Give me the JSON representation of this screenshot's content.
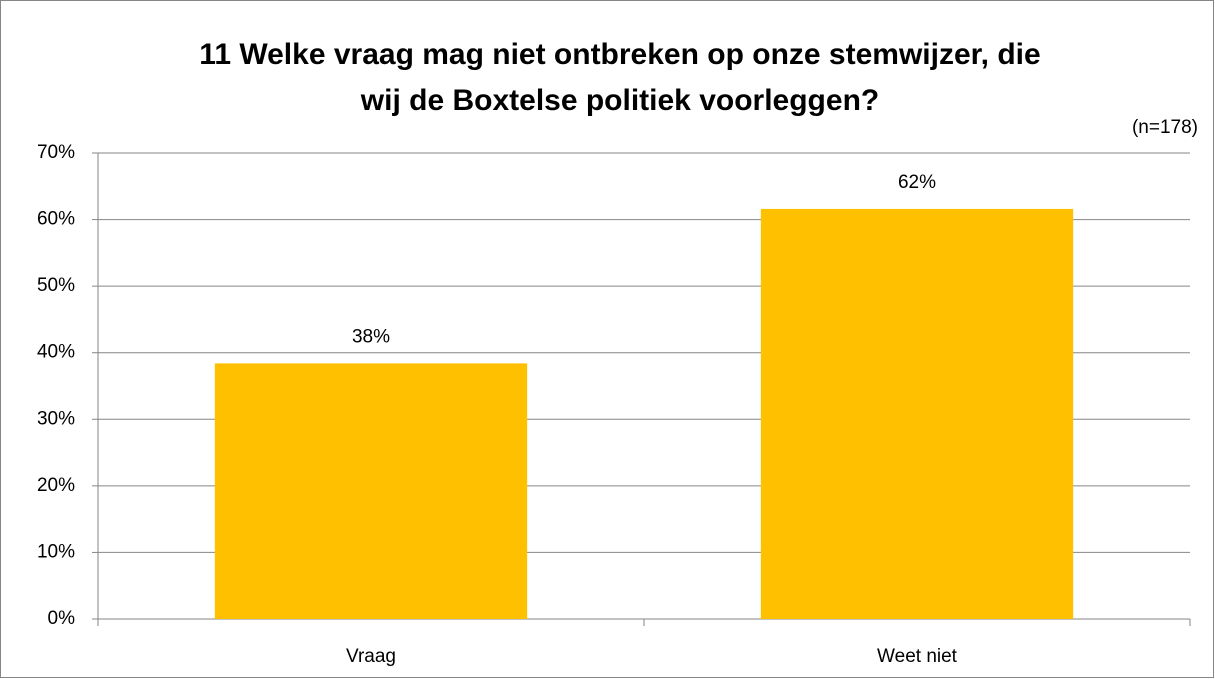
{
  "chart_data": {
    "type": "bar",
    "title": [
      "11 Welke vraag mag niet ontbreken op onze stemwijzer, die",
      "wij de Boxtelse politiek voorleggen?"
    ],
    "annotation": "(n=178)",
    "categories": [
      "Vraag",
      "Weet niet"
    ],
    "values": [
      38.4,
      61.6
    ],
    "value_labels": [
      "38%",
      "62%"
    ],
    "color": "#ffc000",
    "ylim": [
      0,
      70
    ],
    "yticks": [
      {
        "value": 0,
        "label": "0%"
      },
      {
        "value": 10,
        "label": "10%"
      },
      {
        "value": 20,
        "label": "20%"
      },
      {
        "value": 30,
        "label": "30%"
      },
      {
        "value": 40,
        "label": "40%"
      },
      {
        "value": 50,
        "label": "50%"
      },
      {
        "value": 60,
        "label": "60%"
      },
      {
        "value": 70,
        "label": "70%"
      }
    ],
    "grid": true
  }
}
